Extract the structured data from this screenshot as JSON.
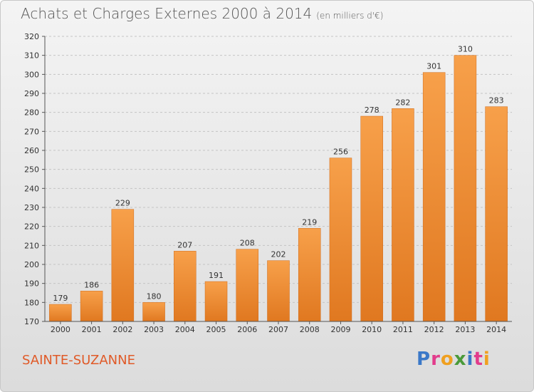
{
  "header": {
    "title": "Achats et Charges Externes 2000 à 2014",
    "unit": "(en milliers d'€)"
  },
  "footer": {
    "place": "SAINTE-SUZANNE",
    "logo": [
      {
        "char": "P",
        "color": "#3a78c8"
      },
      {
        "char": "r",
        "color": "#e23c8c"
      },
      {
        "char": "o",
        "color": "#f0a020"
      },
      {
        "char": "x",
        "color": "#4a9a3a"
      },
      {
        "char": "i",
        "color": "#3a78c8"
      },
      {
        "char": "t",
        "color": "#e23c8c"
      },
      {
        "char": "i",
        "color": "#f0a020"
      }
    ]
  },
  "chart_data": {
    "type": "bar",
    "title": "Achats et Charges Externes 2000 à 2014",
    "subtitle": "(en milliers d'€)",
    "categories": [
      "2000",
      "2001",
      "2002",
      "2003",
      "2004",
      "2005",
      "2006",
      "2007",
      "2008",
      "2009",
      "2010",
      "2011",
      "2012",
      "2013",
      "2014"
    ],
    "values": [
      179,
      186,
      229,
      180,
      207,
      191,
      208,
      202,
      219,
      256,
      278,
      282,
      301,
      310,
      283
    ],
    "ylim": [
      170,
      320
    ],
    "yticks": [
      170,
      180,
      190,
      200,
      210,
      220,
      230,
      240,
      250,
      260,
      270,
      280,
      290,
      300,
      310,
      320
    ],
    "grid": true,
    "bar_color_top": "#f7a04a",
    "bar_color_bottom": "#e07820"
  }
}
